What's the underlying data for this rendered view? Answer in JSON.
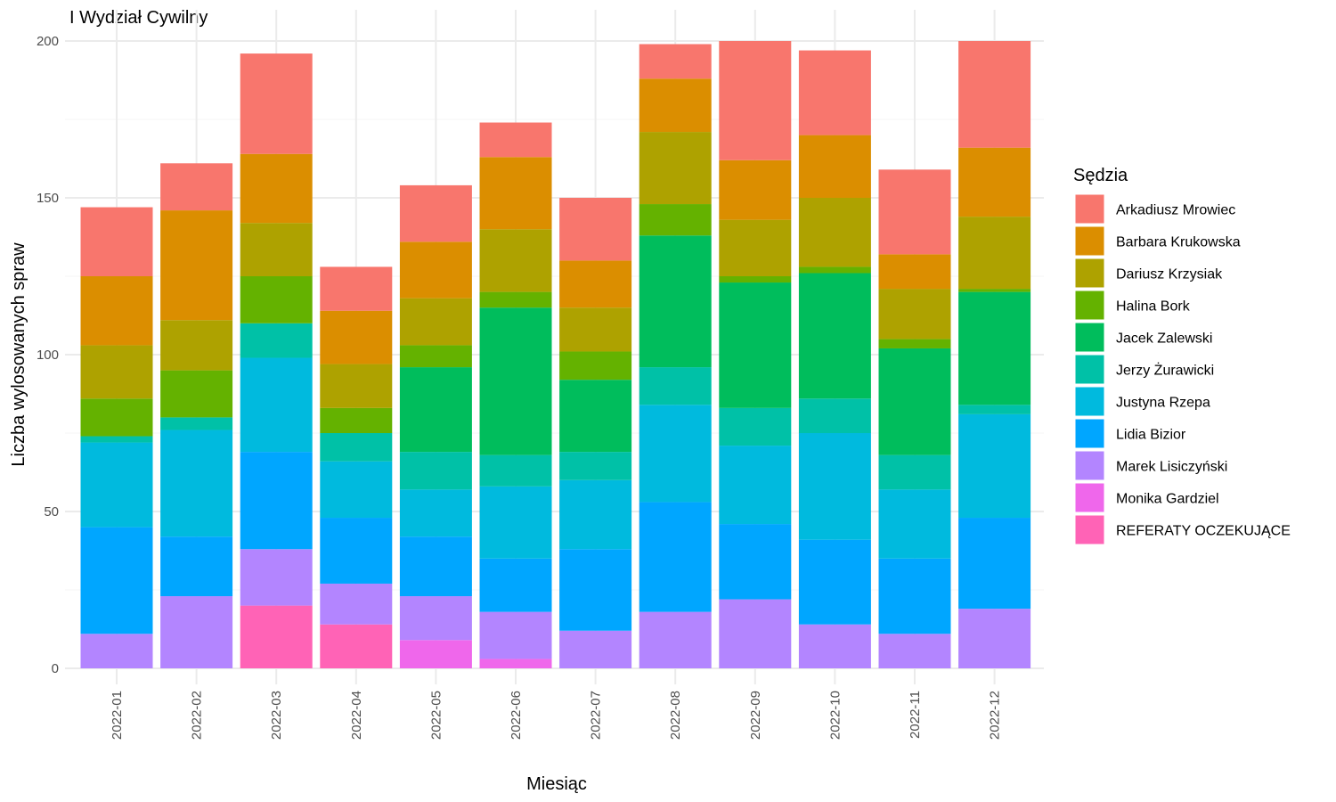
{
  "chart_data": {
    "type": "bar",
    "stacked": true,
    "title": "I Wydział Cywilny",
    "xlabel": "Miesiąc",
    "ylabel": "Liczba wylosowanych spraw",
    "ylim": [
      0,
      200
    ],
    "yticks": [
      0,
      50,
      100,
      150,
      200
    ],
    "grid": true,
    "legend_title": "Sędzia",
    "legend_position": "right",
    "categories": [
      "2022-01",
      "2022-02",
      "2022-03",
      "2022-04",
      "2022-05",
      "2022-06",
      "2022-07",
      "2022-08",
      "2022-09",
      "2022-10",
      "2022-11",
      "2022-12"
    ],
    "series": [
      {
        "name": "Arkadiusz Mrowiec",
        "color": "#F8766D",
        "values": [
          22,
          15,
          32,
          14,
          18,
          11,
          20,
          11,
          38,
          27,
          27,
          34
        ]
      },
      {
        "name": "Barbara Krukowska",
        "color": "#DB8E00",
        "values": [
          22,
          35,
          22,
          17,
          18,
          23,
          15,
          17,
          19,
          20,
          11,
          22
        ]
      },
      {
        "name": "Dariusz Krzysiak",
        "color": "#AEA200",
        "values": [
          17,
          16,
          17,
          14,
          15,
          20,
          14,
          23,
          18,
          22,
          16,
          23
        ]
      },
      {
        "name": "Halina Bork",
        "color": "#64B200",
        "values": [
          12,
          15,
          15,
          8,
          7,
          5,
          9,
          10,
          2,
          2,
          3,
          1
        ]
      },
      {
        "name": "Jacek Zalewski",
        "color": "#00BD5C",
        "values": [
          0,
          0,
          0,
          0,
          27,
          47,
          23,
          42,
          40,
          40,
          34,
          36
        ]
      },
      {
        "name": "Jerzy Żurawicki",
        "color": "#00C1A7",
        "values": [
          2,
          4,
          11,
          9,
          12,
          10,
          9,
          12,
          12,
          11,
          11,
          3
        ]
      },
      {
        "name": "Justyna Rzepa",
        "color": "#00BADE",
        "values": [
          27,
          34,
          30,
          18,
          15,
          23,
          22,
          31,
          25,
          34,
          22,
          33
        ]
      },
      {
        "name": "Lidia Bizior",
        "color": "#00A6FF",
        "values": [
          34,
          19,
          31,
          21,
          19,
          17,
          26,
          35,
          24,
          27,
          24,
          29
        ]
      },
      {
        "name": "Marek Lisiczyński",
        "color": "#B385FF",
        "values": [
          11,
          23,
          18,
          13,
          14,
          15,
          12,
          18,
          22,
          14,
          11,
          19
        ]
      },
      {
        "name": "Monika Gardziel",
        "color": "#EF67EB",
        "values": [
          0,
          0,
          0,
          0,
          9,
          3,
          0,
          0,
          0,
          0,
          0,
          0
        ]
      },
      {
        "name": "REFERATY OCZEKUJĄCE",
        "color": "#FF63B6",
        "values": [
          0,
          0,
          20,
          14,
          0,
          0,
          0,
          0,
          0,
          0,
          0,
          0
        ]
      }
    ]
  }
}
